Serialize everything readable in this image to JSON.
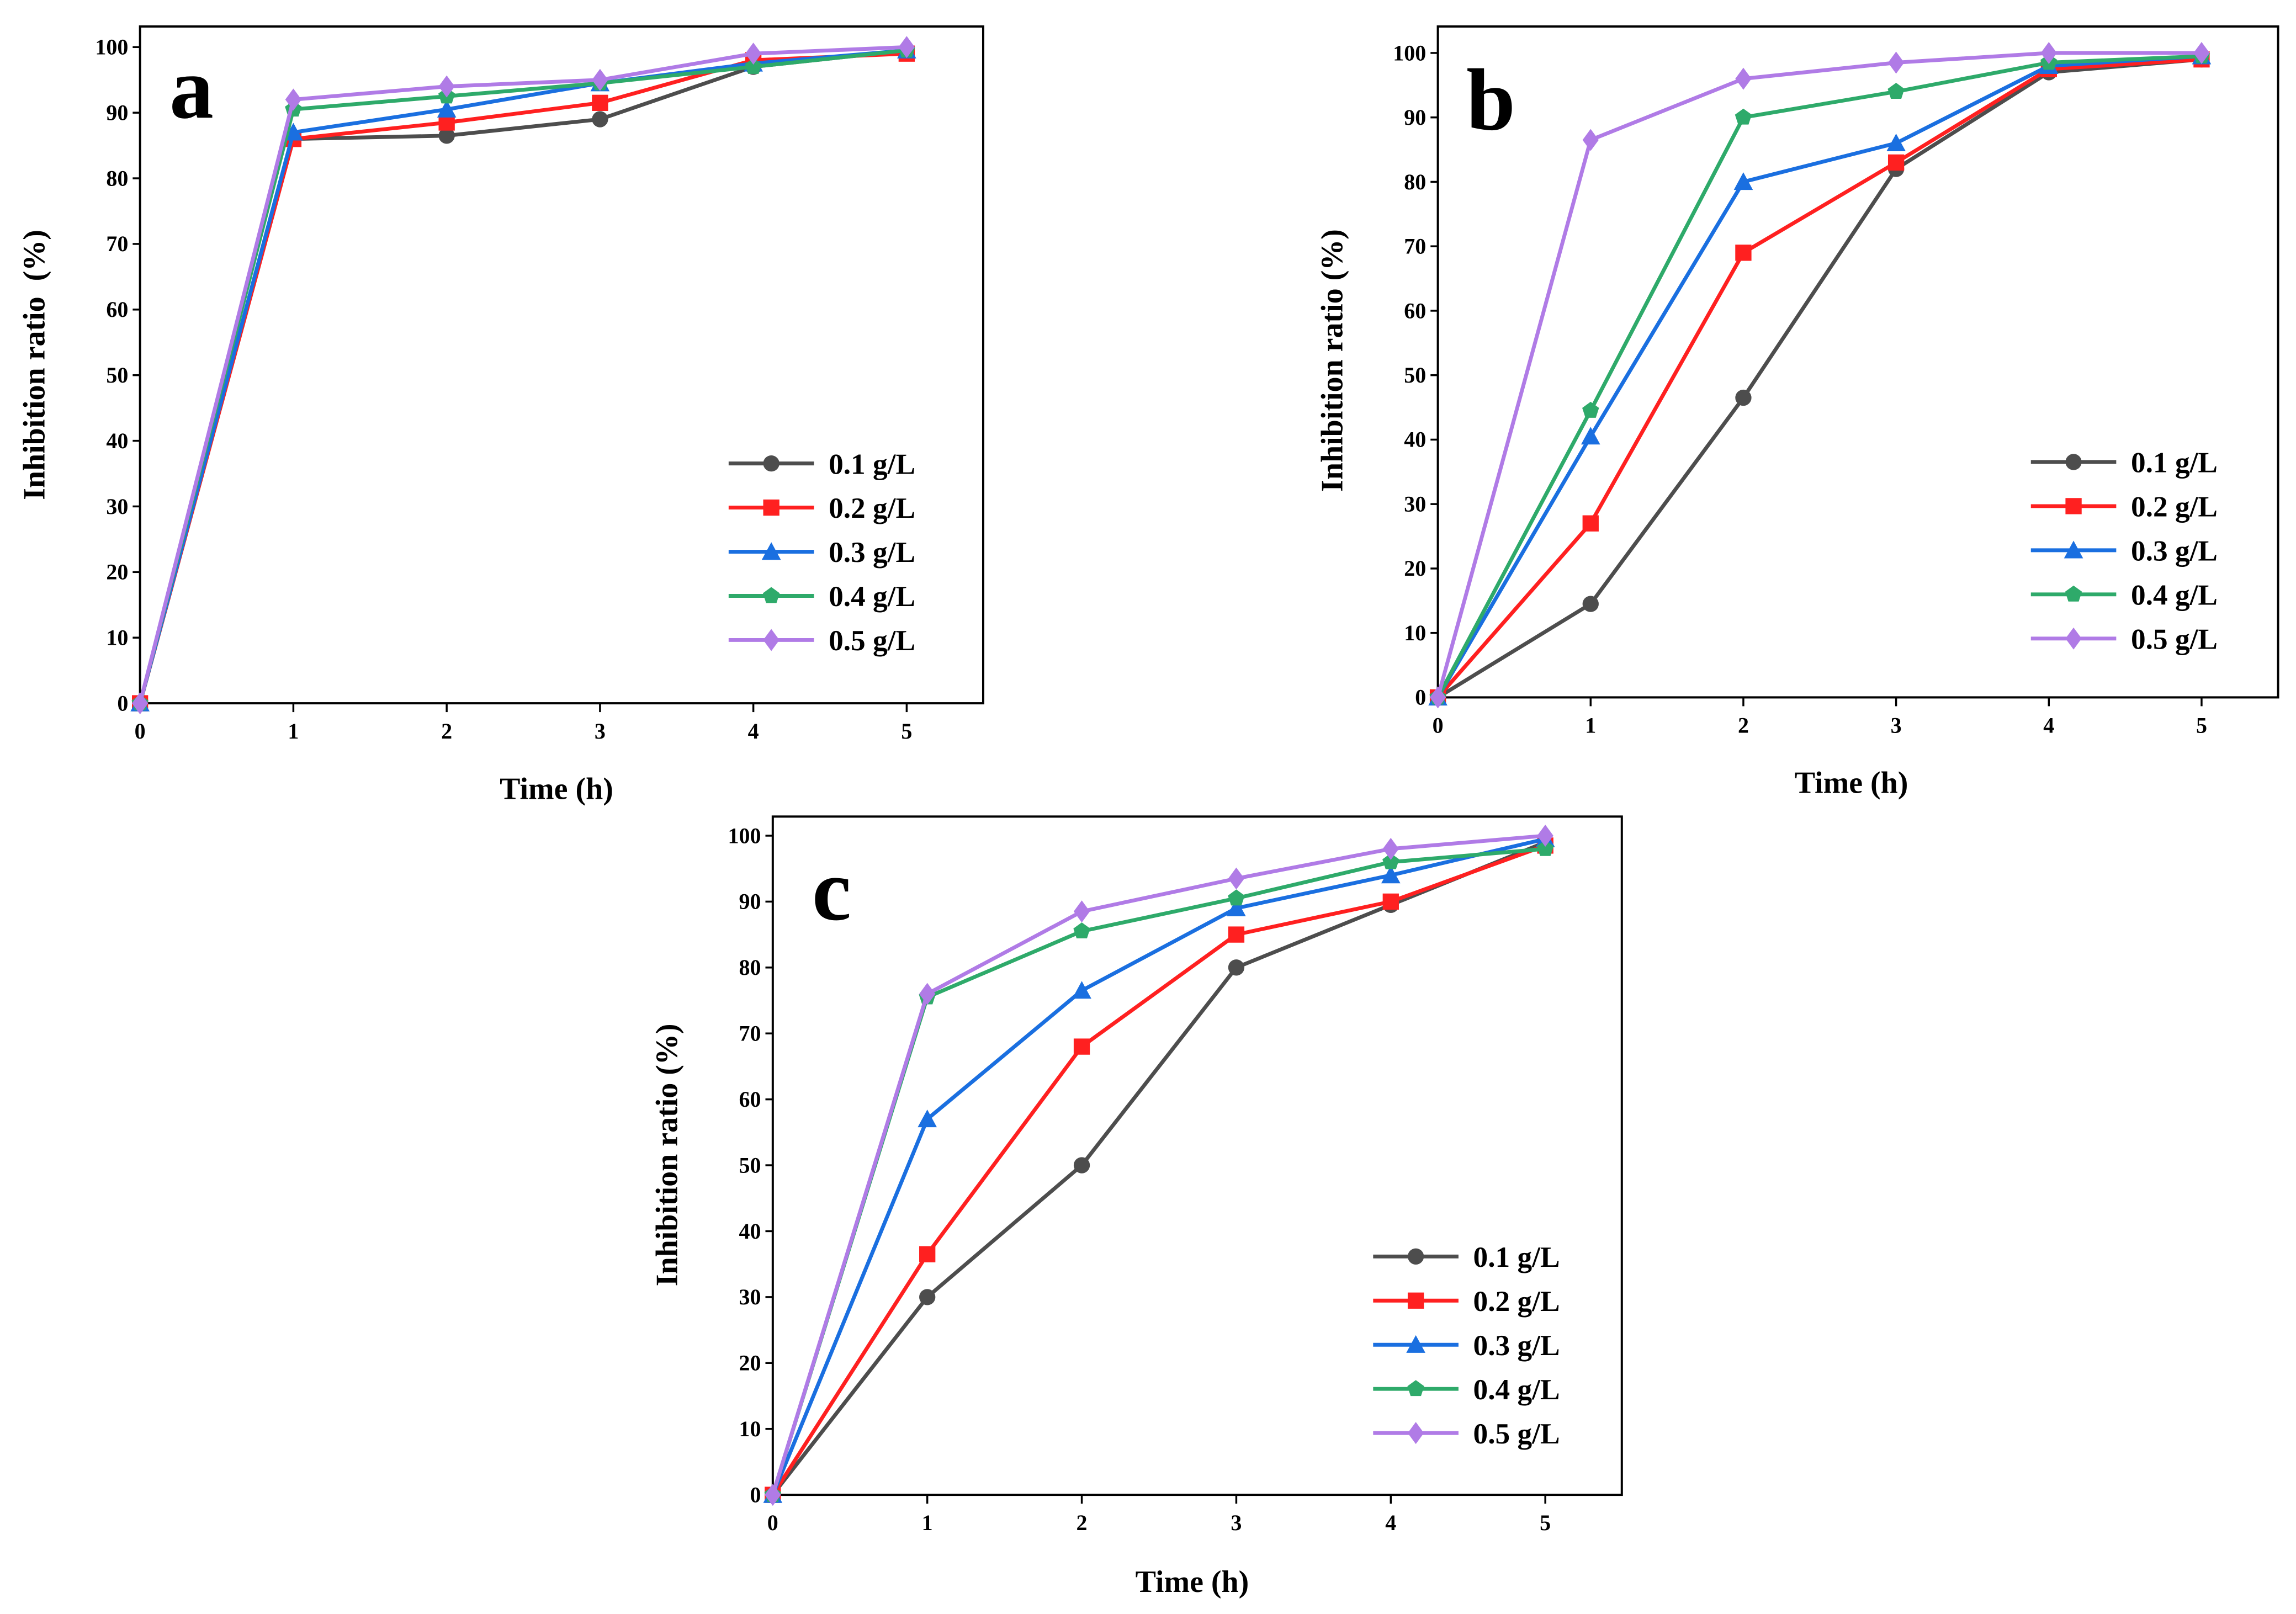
{
  "chart_data": [
    {
      "type": "line",
      "panel_label": "a",
      "xlabel": "Time (h)",
      "ylabel": "Inhibition ratio  (%)",
      "x": [
        0,
        1,
        2,
        3,
        4,
        5
      ],
      "xticks": [
        "0",
        "1",
        "2",
        "3",
        "4",
        "5"
      ],
      "yticks": [
        "0",
        "10",
        "20",
        "30",
        "40",
        "50",
        "60",
        "70",
        "80",
        "90",
        "100"
      ],
      "xlim": [
        0,
        5.5
      ],
      "ylim": [
        0,
        100
      ],
      "legend_position": "bottom-right",
      "series": [
        {
          "name": "0.1 g/L",
          "color": "#4d4d4d",
          "marker": "circle",
          "values": [
            0,
            86,
            86.5,
            89,
            97,
            99.5
          ]
        },
        {
          "name": "0.2 g/L",
          "color": "#ff2020",
          "marker": "square",
          "values": [
            0,
            86,
            88.5,
            91.5,
            98,
            99
          ]
        },
        {
          "name": "0.3 g/L",
          "color": "#1a6fe0",
          "marker": "triangle",
          "values": [
            0,
            87,
            90.5,
            94.5,
            97.5,
            99.5
          ]
        },
        {
          "name": "0.4 g/L",
          "color": "#2eaa6a",
          "marker": "pentagon",
          "values": [
            0,
            90.5,
            92.5,
            94.5,
            97,
            99.5
          ]
        },
        {
          "name": "0.5 g/L",
          "color": "#b07be6",
          "marker": "diamond",
          "values": [
            0,
            92,
            94,
            95,
            99,
            100
          ]
        }
      ]
    },
    {
      "type": "line",
      "panel_label": "b",
      "xlabel": "Time (h)",
      "ylabel": "Inhibition ratio (%)",
      "x": [
        0,
        1,
        2,
        3,
        4,
        5
      ],
      "xticks": [
        "0",
        "1",
        "2",
        "3",
        "4",
        "5"
      ],
      "yticks": [
        "0",
        "10",
        "20",
        "30",
        "40",
        "50",
        "60",
        "70",
        "80",
        "90",
        "100"
      ],
      "xlim": [
        0,
        5.5
      ],
      "ylim": [
        0,
        100
      ],
      "legend_position": "bottom-right",
      "series": [
        {
          "name": "0.1 g/L",
          "color": "#4d4d4d",
          "marker": "circle",
          "values": [
            0,
            14.5,
            46.5,
            82,
            97,
            99
          ]
        },
        {
          "name": "0.2 g/L",
          "color": "#ff2020",
          "marker": "square",
          "values": [
            0,
            27,
            69,
            83,
            97.5,
            99
          ]
        },
        {
          "name": "0.3 g/L",
          "color": "#1a6fe0",
          "marker": "triangle",
          "values": [
            0,
            40.5,
            80,
            86,
            98,
            99.5
          ]
        },
        {
          "name": "0.4 g/L",
          "color": "#2eaa6a",
          "marker": "pentagon",
          "values": [
            0,
            44.5,
            90,
            94,
            98.5,
            99.5
          ]
        },
        {
          "name": "0.5 g/L",
          "color": "#b07be6",
          "marker": "diamond",
          "values": [
            0,
            86.5,
            96,
            98.5,
            100,
            100
          ]
        }
      ]
    },
    {
      "type": "line",
      "panel_label": "c",
      "xlabel": "Time (h)",
      "ylabel": "Inhibition ratio (%)",
      "x": [
        0,
        1,
        2,
        3,
        4,
        5
      ],
      "xticks": [
        "0",
        "1",
        "2",
        "3",
        "4",
        "5"
      ],
      "yticks": [
        "0",
        "10",
        "20",
        "30",
        "40",
        "50",
        "60",
        "70",
        "80",
        "90",
        "100"
      ],
      "xlim": [
        0,
        5.5
      ],
      "ylim": [
        0,
        100
      ],
      "legend_position": "bottom-right",
      "series": [
        {
          "name": "0.1 g/L",
          "color": "#4d4d4d",
          "marker": "circle",
          "values": [
            0,
            30,
            50,
            80,
            89.5,
            99
          ]
        },
        {
          "name": "0.2 g/L",
          "color": "#ff2020",
          "marker": "square",
          "values": [
            0,
            36.5,
            68,
            85,
            90,
            98.5
          ]
        },
        {
          "name": "0.3 g/L",
          "color": "#1a6fe0",
          "marker": "triangle",
          "values": [
            0,
            57,
            76.5,
            89,
            94,
            99.5
          ]
        },
        {
          "name": "0.4 g/L",
          "color": "#2eaa6a",
          "marker": "pentagon",
          "values": [
            0,
            75.5,
            85.5,
            90.5,
            96,
            98
          ]
        },
        {
          "name": "0.5 g/L",
          "color": "#b07be6",
          "marker": "diamond",
          "values": [
            0,
            76,
            88.5,
            93.5,
            98,
            100
          ]
        }
      ]
    }
  ]
}
